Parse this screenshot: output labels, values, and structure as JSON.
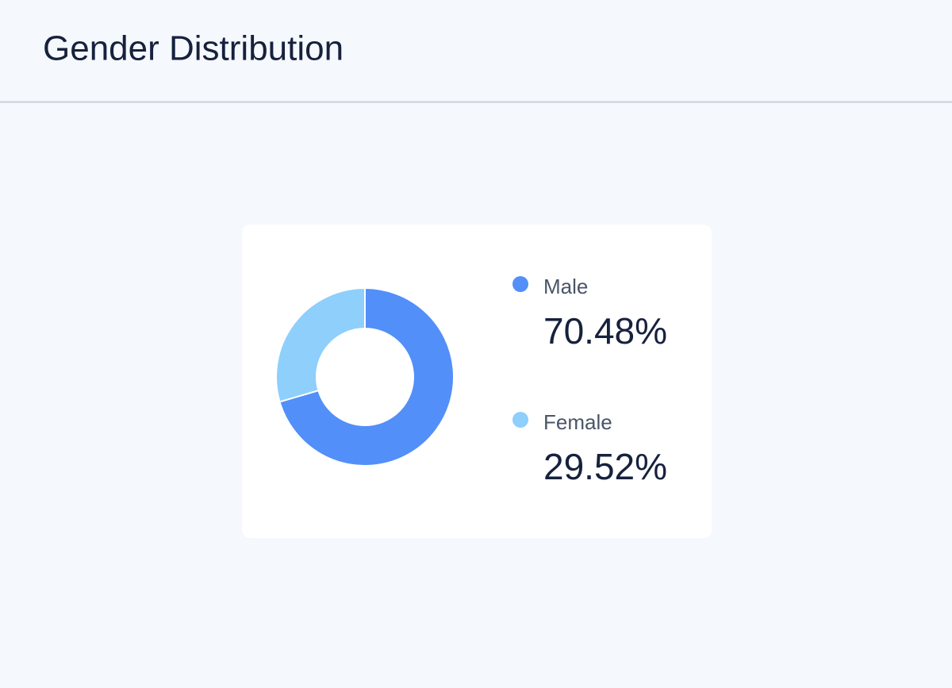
{
  "chart_data": {
    "type": "pie",
    "donut": true,
    "title": "Gender Distribution",
    "categories": [
      "Male",
      "Female"
    ],
    "values": [
      70.48,
      29.52
    ],
    "value_labels": [
      "70.48%",
      "29.52%"
    ],
    "colors": [
      "#528ff8",
      "#8ecffc"
    ]
  }
}
